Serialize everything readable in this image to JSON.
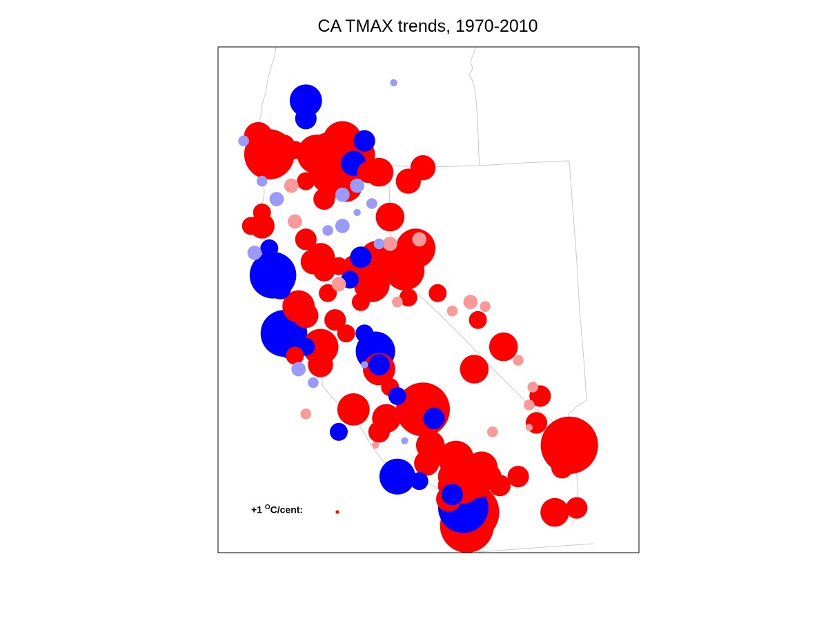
{
  "title": "CA TMAX trends, 1970-2010",
  "legend": {
    "value": "+1",
    "unit_sup": "O",
    "unit_rest": "C/cent:"
  },
  "colors": {
    "strong_warming": "#ff0000",
    "weak_warming": "#f89a9a",
    "weak_cooling": "#9a9af8",
    "strong_cooling": "#0000ff",
    "border": "#c8c8c8",
    "frame": "#000000"
  },
  "chart_data": {
    "type": "scatter",
    "title": "CA TMAX trends, 1970-2010",
    "marker_scale": "circle size proportional to |trend| in °C/century",
    "legend_reference": {
      "trend": 1,
      "unit": "°C/cent"
    },
    "categories": [
      "strong warming",
      "weak warming",
      "weak cooling",
      "strong cooling"
    ],
    "stations": [
      {
        "lon": -122.6,
        "lat": 41.8,
        "trend": -9
      },
      {
        "lon": -122.6,
        "lat": 41.4,
        "trend": -6
      },
      {
        "lon": -123.9,
        "lat": 41.0,
        "trend": 8
      },
      {
        "lon": -124.3,
        "lat": 40.9,
        "trend": -3
      },
      {
        "lon": -123.6,
        "lat": 40.6,
        "trend": 14
      },
      {
        "lon": -123.2,
        "lat": 40.8,
        "trend": 6
      },
      {
        "lon": -122.9,
        "lat": 40.7,
        "trend": 5
      },
      {
        "lon": -122.3,
        "lat": 40.6,
        "trend": 11
      },
      {
        "lon": -121.9,
        "lat": 40.5,
        "trend": 15
      },
      {
        "lon": -121.6,
        "lat": 40.9,
        "trend": 11
      },
      {
        "lon": -121.0,
        "lat": 40.9,
        "trend": -6
      },
      {
        "lon": -121.1,
        "lat": 40.6,
        "trend": 8
      },
      {
        "lon": -121.3,
        "lat": 40.4,
        "trend": -7
      },
      {
        "lon": -120.6,
        "lat": 40.2,
        "trend": 8
      },
      {
        "lon": -121.2,
        "lat": 39.9,
        "trend": -4
      },
      {
        "lon": -121.5,
        "lat": 39.9,
        "trend": 9
      },
      {
        "lon": -122.0,
        "lat": 40.1,
        "trend": 9
      },
      {
        "lon": -122.6,
        "lat": 40.0,
        "trend": 5
      },
      {
        "lon": -123.0,
        "lat": 39.9,
        "trend": 4
      },
      {
        "lon": -123.8,
        "lat": 40.0,
        "trend": -3
      },
      {
        "lon": -123.4,
        "lat": 39.6,
        "trend": -4
      },
      {
        "lon": -122.1,
        "lat": 39.6,
        "trend": 6
      },
      {
        "lon": -121.6,
        "lat": 39.7,
        "trend": -4
      },
      {
        "lon": -123.8,
        "lat": 39.3,
        "trend": 5
      },
      {
        "lon": -123.8,
        "lat": 39.0,
        "trend": 7
      },
      {
        "lon": -122.9,
        "lat": 39.1,
        "trend": 4
      },
      {
        "lon": -122.6,
        "lat": 38.7,
        "trend": 6
      },
      {
        "lon": -122.0,
        "lat": 38.9,
        "trend": -3
      },
      {
        "lon": -123.6,
        "lat": 38.5,
        "trend": -5
      },
      {
        "lon": -123.5,
        "lat": 37.9,
        "trend": -13
      },
      {
        "lon": -123.3,
        "lat": 37.6,
        "trend": -6
      },
      {
        "lon": -122.4,
        "lat": 38.2,
        "trend": 7
      },
      {
        "lon": -122.2,
        "lat": 38.3,
        "trend": 8
      },
      {
        "lon": -122.1,
        "lat": 38.0,
        "trend": 6
      },
      {
        "lon": -121.7,
        "lat": 38.1,
        "trend": 5
      },
      {
        "lon": -121.3,
        "lat": 38.1,
        "trend": 6
      },
      {
        "lon": -121.4,
        "lat": 37.8,
        "trend": -5
      },
      {
        "lon": -120.6,
        "lat": 38.2,
        "trend": 12
      },
      {
        "lon": -120.8,
        "lat": 37.7,
        "trend": 10
      },
      {
        "lon": -121.1,
        "lat": 37.3,
        "trend": 5
      },
      {
        "lon": -121.7,
        "lat": 37.7,
        "trend": 4
      },
      {
        "lon": -122.0,
        "lat": 37.5,
        "trend": 5
      },
      {
        "lon": -122.6,
        "lat": 37.0,
        "trend": 7
      },
      {
        "lon": -122.8,
        "lat": 37.2,
        "trend": 9
      },
      {
        "lon": -123.2,
        "lat": 36.6,
        "trend": -13
      },
      {
        "lon": -123.0,
        "lat": 36.3,
        "trend": -7
      },
      {
        "lon": -122.6,
        "lat": 36.3,
        "trend": -5
      },
      {
        "lon": -122.9,
        "lat": 36.1,
        "trend": 5
      },
      {
        "lon": -122.2,
        "lat": 36.3,
        "trend": 10
      },
      {
        "lon": -121.5,
        "lat": 36.6,
        "trend": 5
      },
      {
        "lon": -121.0,
        "lat": 36.6,
        "trend": -5
      },
      {
        "lon": -121.8,
        "lat": 36.9,
        "trend": 6
      },
      {
        "lon": -120.7,
        "lat": 36.2,
        "trend": -11
      },
      {
        "lon": -120.6,
        "lat": 35.9,
        "trend": -6
      },
      {
        "lon": -122.2,
        "lat": 35.9,
        "trend": 7
      },
      {
        "lon": -122.8,
        "lat": 35.8,
        "trend": -4
      },
      {
        "lon": -122.4,
        "lat": 35.5,
        "trend": -3
      },
      {
        "lon": -120.6,
        "lat": 35.8,
        "trend": 9
      },
      {
        "lon": -120.3,
        "lat": 35.4,
        "trend": 5
      },
      {
        "lon": -120.1,
        "lat": 35.2,
        "trend": -5
      },
      {
        "lon": -119.4,
        "lat": 34.9,
        "trend": 15
      },
      {
        "lon": -119.1,
        "lat": 34.7,
        "trend": -6
      },
      {
        "lon": -121.3,
        "lat": 34.9,
        "trend": 9
      },
      {
        "lon": -120.4,
        "lat": 34.7,
        "trend": 8
      },
      {
        "lon": -120.6,
        "lat": 34.4,
        "trend": 6
      },
      {
        "lon": -121.7,
        "lat": 34.4,
        "trend": -5
      },
      {
        "lon": -119.2,
        "lat": 34.1,
        "trend": 8
      },
      {
        "lon": -119.3,
        "lat": 33.7,
        "trend": 7
      },
      {
        "lon": -118.5,
        "lat": 33.8,
        "trend": 10
      },
      {
        "lon": -117.8,
        "lat": 33.6,
        "trend": 9
      },
      {
        "lon": -117.6,
        "lat": 33.4,
        "trend": 7
      },
      {
        "lon": -118.6,
        "lat": 33.4,
        "trend": 8
      },
      {
        "lon": -120.1,
        "lat": 33.4,
        "trend": -10
      },
      {
        "lon": -119.5,
        "lat": 33.3,
        "trend": -5
      },
      {
        "lon": -118.7,
        "lat": 33.2,
        "trend": 6
      },
      {
        "lon": -118.3,
        "lat": 33.2,
        "trend": 10
      },
      {
        "lon": -117.9,
        "lat": 33.2,
        "trend": 7
      },
      {
        "lon": -117.3,
        "lat": 33.2,
        "trend": 6
      },
      {
        "lon": -118.3,
        "lat": 32.7,
        "trend": -14
      },
      {
        "lon": -118.1,
        "lat": 32.6,
        "trend": 16
      },
      {
        "lon": -118.2,
        "lat": 32.3,
        "trend": 15
      },
      {
        "lon": -118.7,
        "lat": 32.9,
        "trend": 7
      },
      {
        "lon": -118.6,
        "lat": 33.0,
        "trend": -6
      },
      {
        "lon": -116.8,
        "lat": 33.4,
        "trend": 6
      },
      {
        "lon": -116.3,
        "lat": 34.6,
        "trend": 6
      },
      {
        "lon": -115.4,
        "lat": 34.1,
        "trend": 16
      },
      {
        "lon": -115.6,
        "lat": 33.6,
        "trend": 6
      },
      {
        "lon": -115.8,
        "lat": 32.6,
        "trend": 8
      },
      {
        "lon": -115.2,
        "lat": 32.7,
        "trend": 6
      },
      {
        "lon": -116.2,
        "lat": 35.2,
        "trend": 6
      },
      {
        "lon": -116.4,
        "lat": 35.4,
        "trend": 3
      },
      {
        "lon": -118.0,
        "lat": 35.8,
        "trend": 8
      },
      {
        "lon": -117.9,
        "lat": 36.9,
        "trend": 5
      },
      {
        "lon": -117.7,
        "lat": 37.2,
        "trend": 3
      },
      {
        "lon": -117.2,
        "lat": 36.3,
        "trend": 8
      },
      {
        "lon": -116.8,
        "lat": 36.0,
        "trend": 3
      },
      {
        "lon": -119.6,
        "lat": 38.5,
        "trend": 11
      },
      {
        "lon": -119.9,
        "lat": 38.0,
        "trend": 11
      },
      {
        "lon": -119.8,
        "lat": 37.4,
        "trend": 5
      },
      {
        "lon": -119.0,
        "lat": 37.5,
        "trend": 5
      },
      {
        "lon": -118.6,
        "lat": 37.1,
        "trend": 3
      },
      {
        "lon": -118.1,
        "lat": 37.3,
        "trend": 4
      },
      {
        "lon": -120.1,
        "lat": 37.3,
        "trend": 3
      },
      {
        "lon": -120.6,
        "lat": 38.6,
        "trend": -3
      },
      {
        "lon": -121.1,
        "lat": 38.3,
        "trend": -6
      },
      {
        "lon": -120.3,
        "lat": 39.2,
        "trend": 8
      },
      {
        "lon": -121.6,
        "lat": 39.0,
        "trend": -4
      },
      {
        "lon": -120.8,
        "lat": 39.5,
        "trend": -3
      },
      {
        "lon": -120.3,
        "lat": 38.6,
        "trend": 4
      },
      {
        "lon": -119.5,
        "lat": 38.7,
        "trend": 4
      },
      {
        "lon": -119.8,
        "lat": 40.0,
        "trend": 7
      },
      {
        "lon": -119.4,
        "lat": 40.3,
        "trend": 7
      },
      {
        "lon": -120.9,
        "lat": 40.2,
        "trend": 6
      },
      {
        "lon": -124.1,
        "lat": 39.0,
        "trend": 5
      },
      {
        "lon": -124.0,
        "lat": 38.4,
        "trend": -4
      },
      {
        "lon": -116.5,
        "lat": 35.0,
        "trend": 3
      },
      {
        "lon": -116.5,
        "lat": 34.5,
        "trend": 2
      },
      {
        "lon": -117.5,
        "lat": 34.4,
        "trend": 3
      },
      {
        "lon": -120.7,
        "lat": 34.1,
        "trend": 2
      },
      {
        "lon": -119.9,
        "lat": 34.2,
        "trend": -2
      },
      {
        "lon": -122.6,
        "lat": 34.8,
        "trend": 3
      },
      {
        "lon": -121.0,
        "lat": 35.9,
        "trend": -2
      },
      {
        "lon": -121.2,
        "lat": 39.3,
        "trend": -2
      },
      {
        "lon": -120.2,
        "lat": 42.2,
        "trend": -2
      }
    ]
  }
}
